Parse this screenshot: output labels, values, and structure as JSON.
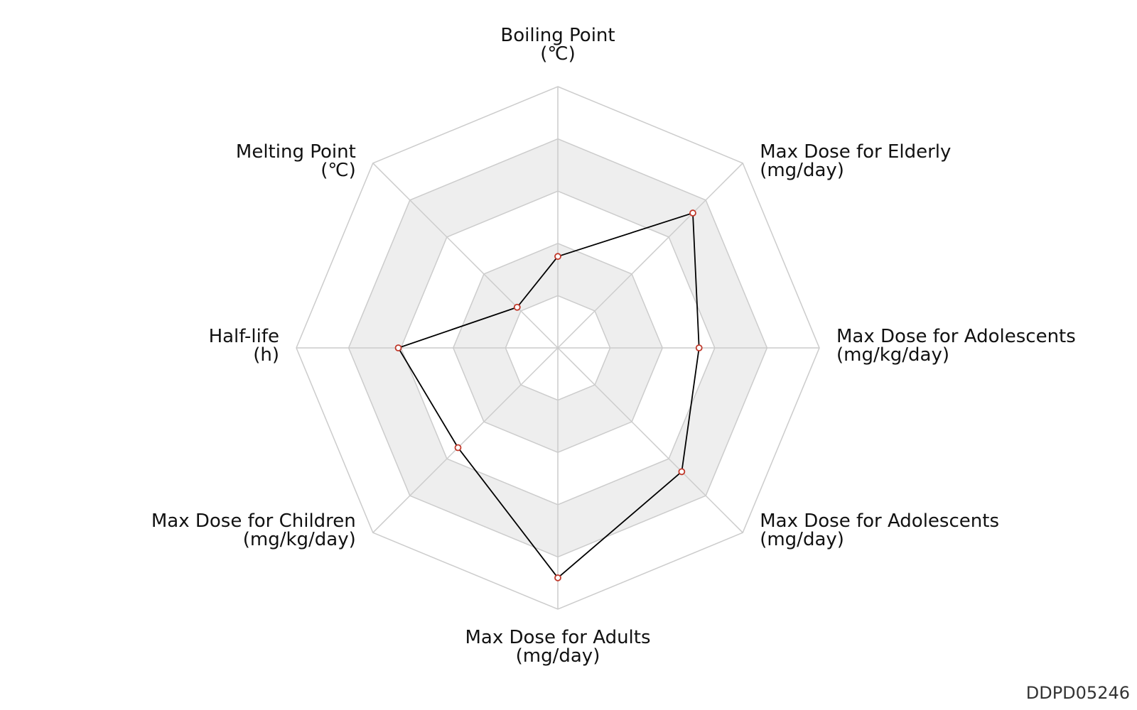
{
  "chart_data": {
    "type": "radar",
    "title": "",
    "axes": [
      {
        "name": "Boiling Point",
        "unit": "(℃)"
      },
      {
        "name": "Max Dose for Elderly",
        "unit": "(mg/day)"
      },
      {
        "name": "Max Dose for Adolescents",
        "unit": "(mg/kg/day)"
      },
      {
        "name": "Max Dose for Adolescents",
        "unit": "(mg/day)"
      },
      {
        "name": "Max Dose for Adults",
        "unit": "(mg/day)"
      },
      {
        "name": "Max Dose for Children",
        "unit": "(mg/kg/day)"
      },
      {
        "name": "Half-life",
        "unit": "(h)"
      },
      {
        "name": "Melting Point",
        "unit": "(℃)"
      }
    ],
    "series": [
      {
        "values": [
          0.35,
          0.73,
          0.54,
          0.67,
          0.88,
          0.54,
          0.61,
          0.22
        ]
      }
    ],
    "scale": {
      "min": 0,
      "max": 1,
      "rings": 5
    },
    "grid": true,
    "colors": {
      "line": "#000000",
      "marker_stroke": "#c0392b",
      "marker_fill": "#ffffff",
      "grid_line": "#cccccc",
      "band_fill": "#eeeeee"
    }
  },
  "watermark": "DDPD05246"
}
